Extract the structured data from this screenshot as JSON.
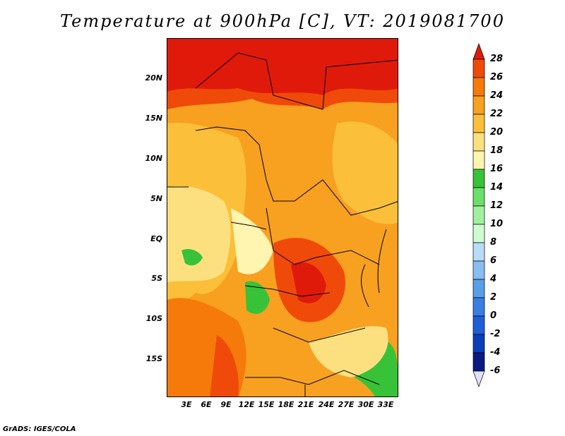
{
  "title": "Temperature at 900hPa [C], VT: 2019081700",
  "credit": "GrADS: IGES/COLA",
  "map": {
    "lat_labels": [
      "20N",
      "15N",
      "10N",
      "5N",
      "EQ",
      "5S",
      "10S",
      "15S"
    ],
    "lon_labels": [
      "3E",
      "6E",
      "9E",
      "12E",
      "15E",
      "18E",
      "21E",
      "24E",
      "27E",
      "30E",
      "33E"
    ]
  },
  "colorbar": {
    "labels": [
      "28",
      "26",
      "24",
      "22",
      "20",
      "18",
      "16",
      "14",
      "12",
      "10",
      "8",
      "6",
      "4",
      "2",
      "0",
      "-2",
      "-4",
      "-6"
    ],
    "colors": [
      "#e01a0a",
      "#f04a0a",
      "#f57a0a",
      "#f8a020",
      "#fbbf3a",
      "#fce080",
      "#fff4b0",
      "#38c238",
      "#6adf6a",
      "#a0f0a0",
      "#d0fad0",
      "#b8dcf8",
      "#88bef0",
      "#5a9ee8",
      "#3a7ee0",
      "#1e5ed8",
      "#0a3eb8",
      "#0a1a80",
      "#e0e0f8"
    ]
  }
}
